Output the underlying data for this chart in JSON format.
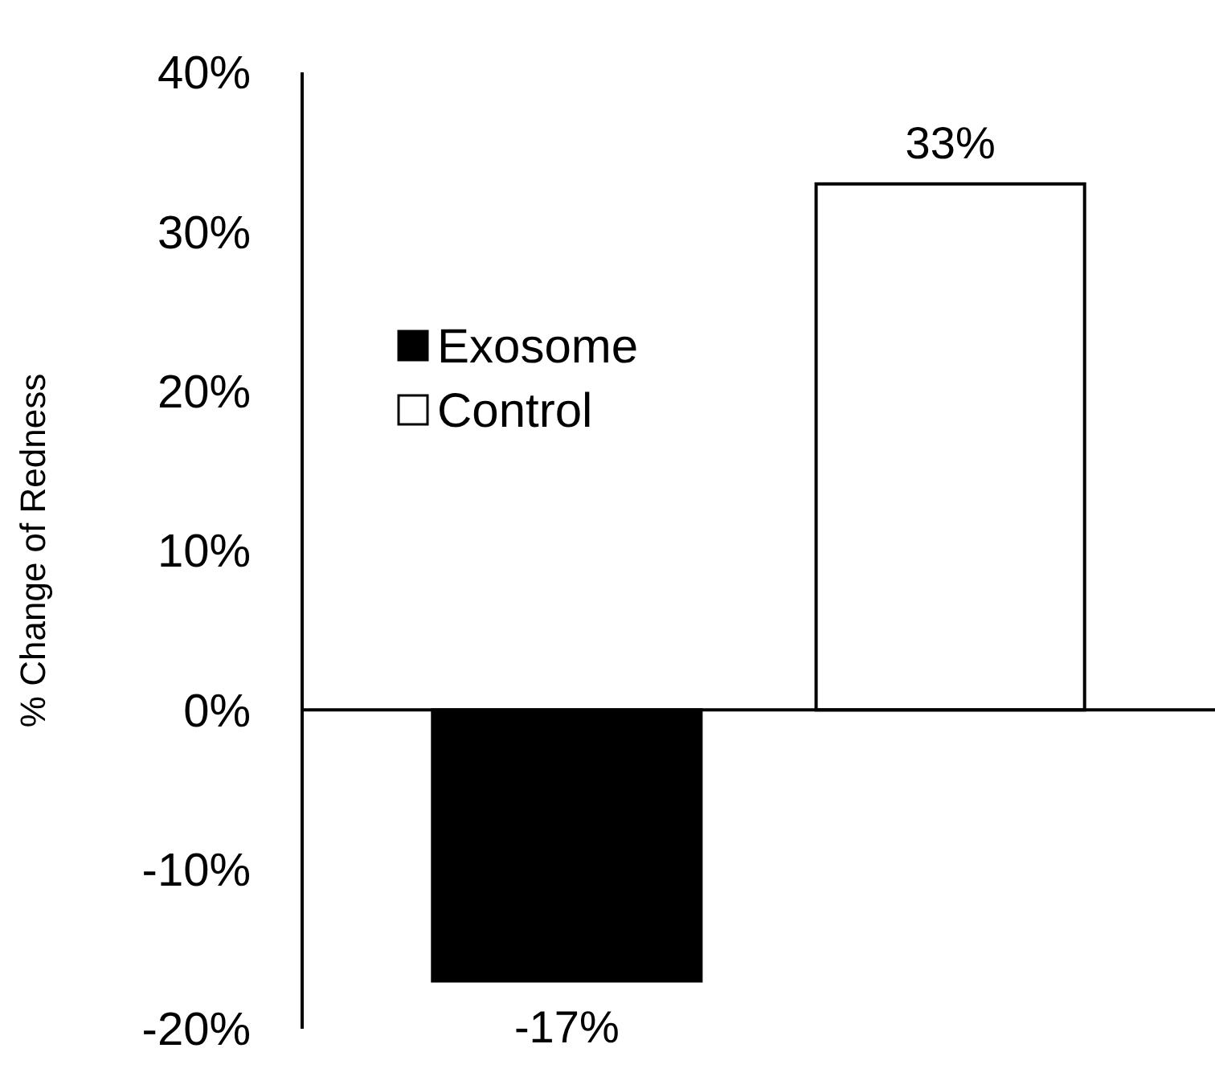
{
  "chart_data": {
    "type": "bar",
    "ylabel": "% Change of Redness",
    "categories": [
      null
    ],
    "series": [
      {
        "name": "Exosome",
        "color": "#000000",
        "values": [
          -17
        ],
        "value_labels": [
          "-17%"
        ]
      },
      {
        "name": "Control",
        "color": "#ffffff",
        "values": [
          33
        ],
        "value_labels": [
          "33%"
        ]
      }
    ],
    "ylim": [
      -20,
      40
    ],
    "yticks": [
      {
        "value": -20,
        "label": "-20%"
      },
      {
        "value": -10,
        "label": "-10%"
      },
      {
        "value": 0,
        "label": "0%"
      },
      {
        "value": 10,
        "label": "10%"
      },
      {
        "value": 20,
        "label": "20%"
      },
      {
        "value": 30,
        "label": "30%"
      },
      {
        "value": 40,
        "label": "40%"
      }
    ],
    "legend": "left"
  }
}
